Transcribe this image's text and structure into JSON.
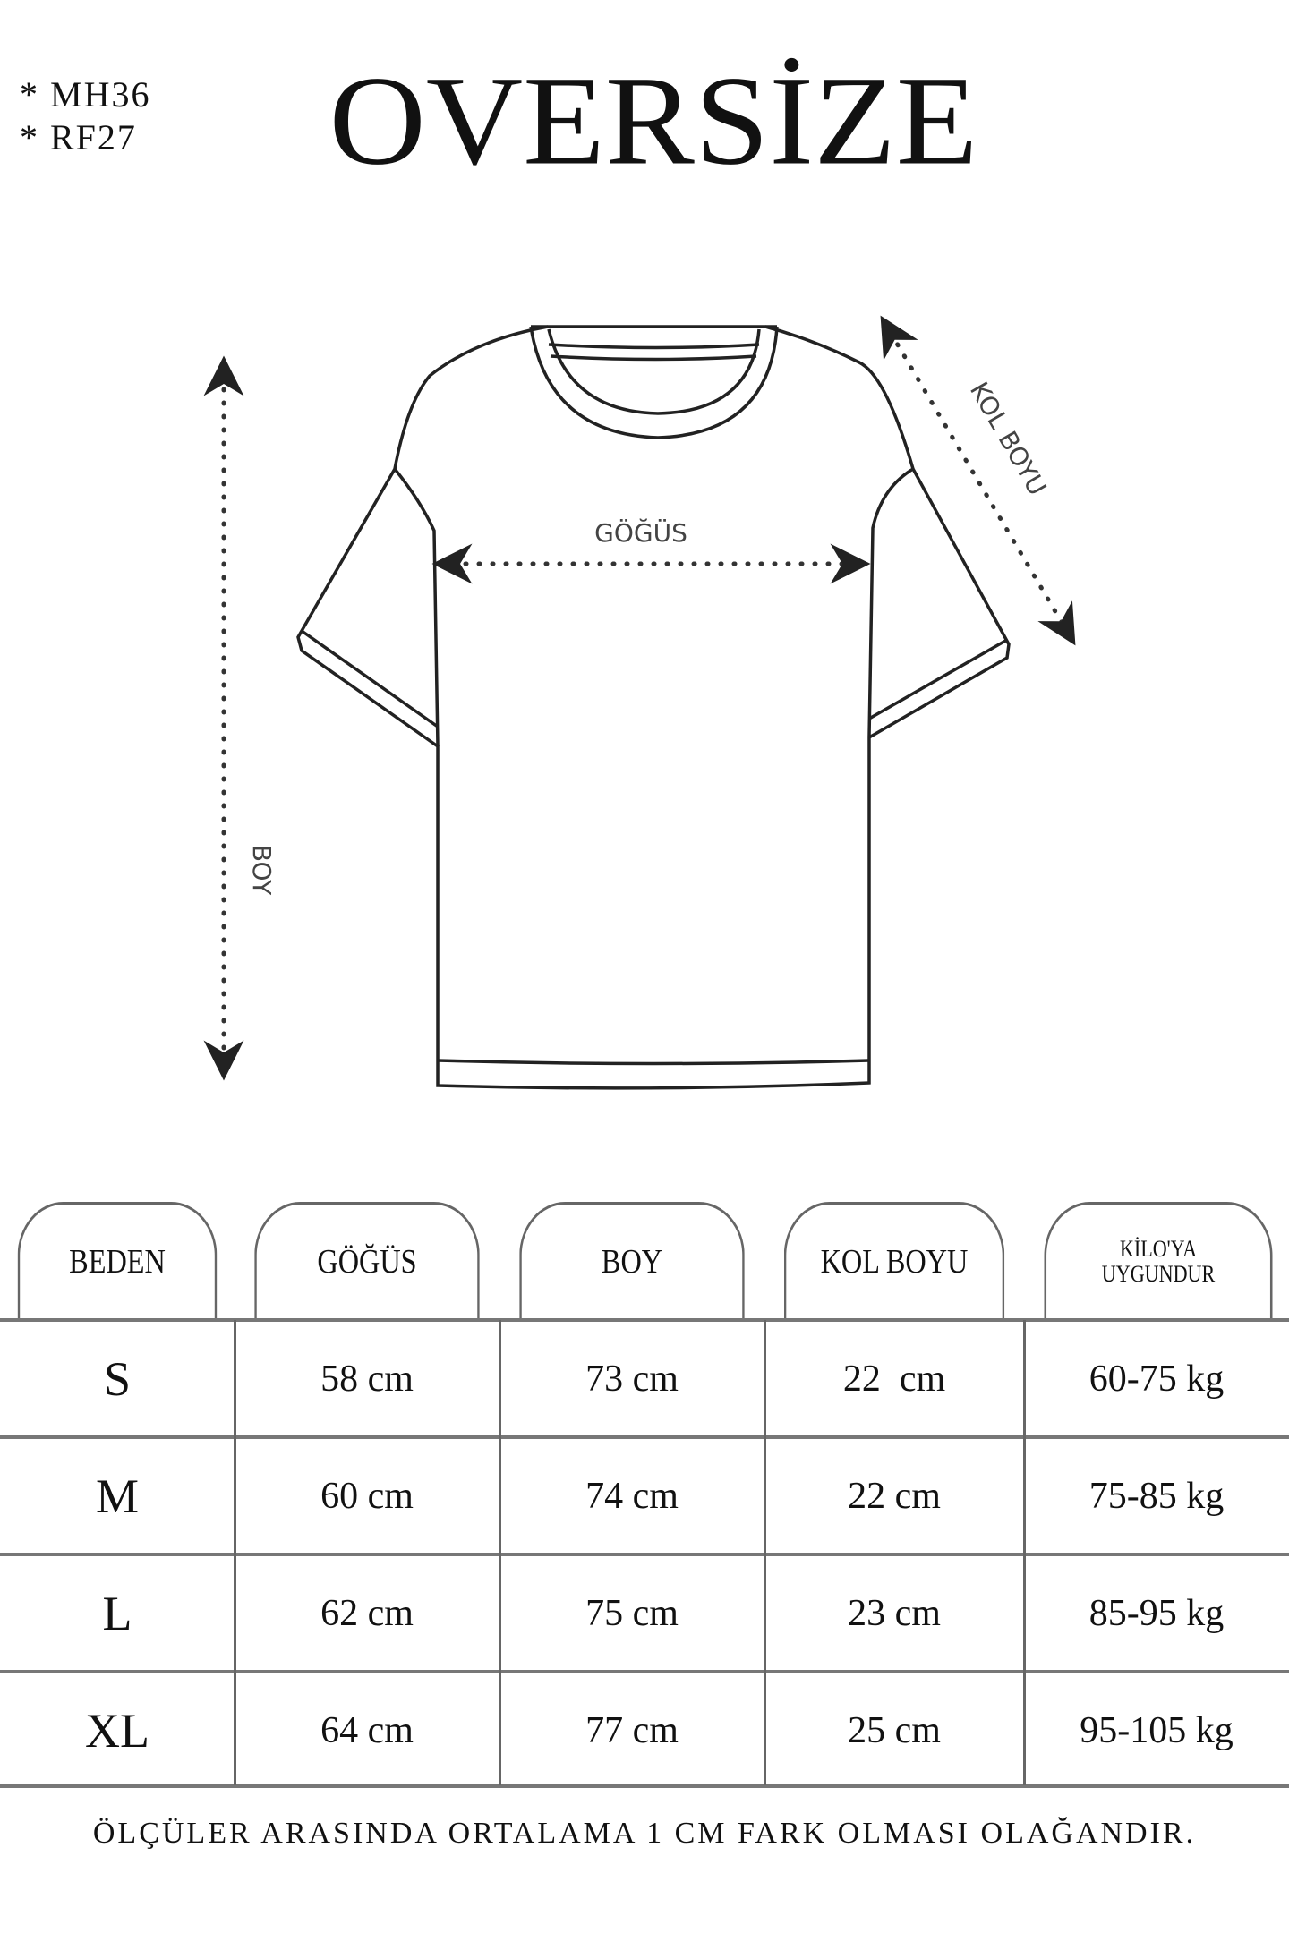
{
  "codes": [
    "* MH36",
    "* RF27"
  ],
  "title": "OVERSİZE",
  "diagram": {
    "chest_label": "GÖĞÜS",
    "length_label": "BOY",
    "sleeve_label": "KOL BOYU"
  },
  "table": {
    "headers": [
      "BEDEN",
      "GÖĞÜS",
      "BOY",
      "KOL BOYU",
      "KİLO'YA UYGUNDUR"
    ],
    "rows": [
      [
        "S",
        "58 cm",
        "73 cm",
        "22  cm",
        "60-75 kg"
      ],
      [
        "M",
        "60 cm",
        "74 cm",
        "22 cm",
        "75-85 kg"
      ],
      [
        "L",
        "62 cm",
        "75 cm",
        "23 cm",
        "85-95 kg"
      ],
      [
        "XL",
        "64 cm",
        "77 cm",
        "25 cm",
        "95-105 kg"
      ]
    ]
  },
  "footer": "ÖLÇÜLER ARASINDA ORTALAMA 1 CM FARK OLMASI OLAĞANDIR."
}
